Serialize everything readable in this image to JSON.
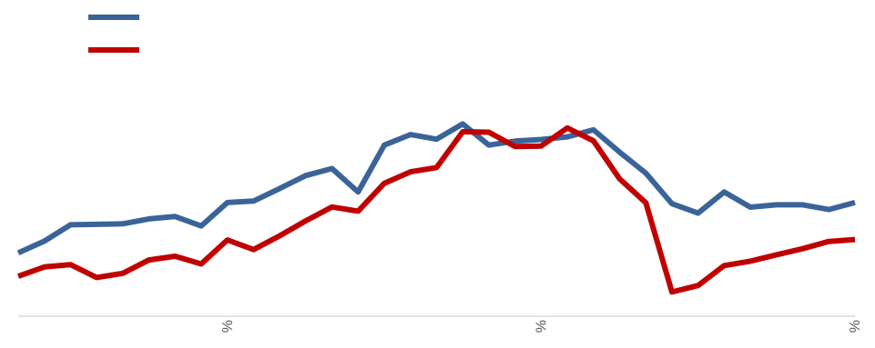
{
  "chart_data": {
    "type": "line",
    "title": "",
    "xlabel": "",
    "ylabel": "",
    "ylim": [
      0,
      100
    ],
    "x_tick_labels": [
      "%",
      "%",
      "%"
    ],
    "x_tick_positions": [
      8,
      20,
      32
    ],
    "legend_position": "top-left",
    "series": [
      {
        "color": "#3a6499",
        "values": [
          27,
          32,
          39,
          39.2,
          39.4,
          41.5,
          42.5,
          38.5,
          48.5,
          49.1,
          54.5,
          60,
          63,
          53,
          73,
          77.5,
          75.5,
          82,
          73,
          74.7,
          75.4,
          76.5,
          79.5,
          70,
          61,
          48,
          44,
          53,
          46.5,
          47.5,
          47.5,
          45.5,
          48.5
        ]
      },
      {
        "color": "#c00000",
        "values": [
          17,
          21,
          22,
          16.5,
          18.3,
          24,
          25.6,
          22.3,
          32.5,
          28.4,
          34.3,
          40.7,
          46.6,
          44.8,
          56.7,
          61.6,
          63.4,
          78.7,
          78.5,
          72.4,
          72.6,
          80.3,
          74.8,
          58.6,
          48.4,
          10.3,
          13.1,
          21.6,
          23.5,
          26.2,
          28.8,
          31.9,
          32.7
        ]
      }
    ]
  }
}
